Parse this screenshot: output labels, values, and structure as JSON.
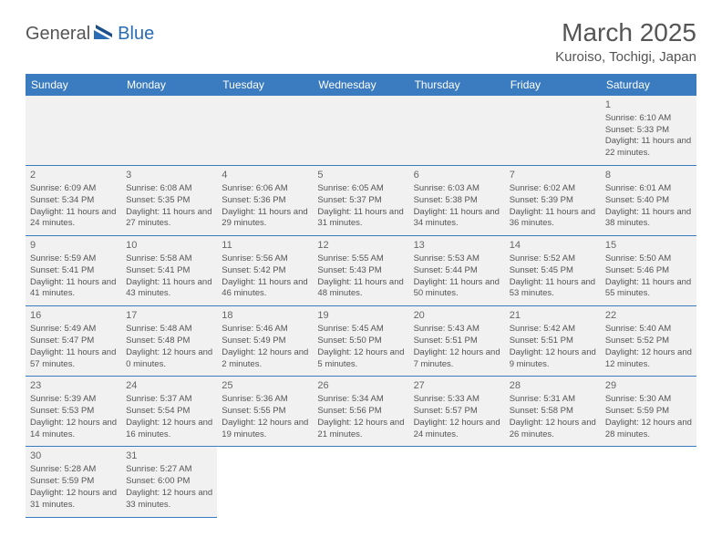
{
  "logo": {
    "dark": "General",
    "blue": "Blue"
  },
  "title": "March 2025",
  "location": "Kuroiso, Tochigi, Japan",
  "weekday_headers": [
    "Sunday",
    "Monday",
    "Tuesday",
    "Wednesday",
    "Thursday",
    "Friday",
    "Saturday"
  ],
  "colors": {
    "header_bg": "#3b7bbf",
    "header_text": "#ffffff",
    "cell_bg": "#f1f1f1",
    "border": "#3b7bbf",
    "body_text": "#555555"
  },
  "weeks": [
    [
      null,
      null,
      null,
      null,
      null,
      null,
      {
        "n": "1",
        "sunrise": "Sunrise: 6:10 AM",
        "sunset": "Sunset: 5:33 PM",
        "daylight": "Daylight: 11 hours and 22 minutes."
      }
    ],
    [
      {
        "n": "2",
        "sunrise": "Sunrise: 6:09 AM",
        "sunset": "Sunset: 5:34 PM",
        "daylight": "Daylight: 11 hours and 24 minutes."
      },
      {
        "n": "3",
        "sunrise": "Sunrise: 6:08 AM",
        "sunset": "Sunset: 5:35 PM",
        "daylight": "Daylight: 11 hours and 27 minutes."
      },
      {
        "n": "4",
        "sunrise": "Sunrise: 6:06 AM",
        "sunset": "Sunset: 5:36 PM",
        "daylight": "Daylight: 11 hours and 29 minutes."
      },
      {
        "n": "5",
        "sunrise": "Sunrise: 6:05 AM",
        "sunset": "Sunset: 5:37 PM",
        "daylight": "Daylight: 11 hours and 31 minutes."
      },
      {
        "n": "6",
        "sunrise": "Sunrise: 6:03 AM",
        "sunset": "Sunset: 5:38 PM",
        "daylight": "Daylight: 11 hours and 34 minutes."
      },
      {
        "n": "7",
        "sunrise": "Sunrise: 6:02 AM",
        "sunset": "Sunset: 5:39 PM",
        "daylight": "Daylight: 11 hours and 36 minutes."
      },
      {
        "n": "8",
        "sunrise": "Sunrise: 6:01 AM",
        "sunset": "Sunset: 5:40 PM",
        "daylight": "Daylight: 11 hours and 38 minutes."
      }
    ],
    [
      {
        "n": "9",
        "sunrise": "Sunrise: 5:59 AM",
        "sunset": "Sunset: 5:41 PM",
        "daylight": "Daylight: 11 hours and 41 minutes."
      },
      {
        "n": "10",
        "sunrise": "Sunrise: 5:58 AM",
        "sunset": "Sunset: 5:41 PM",
        "daylight": "Daylight: 11 hours and 43 minutes."
      },
      {
        "n": "11",
        "sunrise": "Sunrise: 5:56 AM",
        "sunset": "Sunset: 5:42 PM",
        "daylight": "Daylight: 11 hours and 46 minutes."
      },
      {
        "n": "12",
        "sunrise": "Sunrise: 5:55 AM",
        "sunset": "Sunset: 5:43 PM",
        "daylight": "Daylight: 11 hours and 48 minutes."
      },
      {
        "n": "13",
        "sunrise": "Sunrise: 5:53 AM",
        "sunset": "Sunset: 5:44 PM",
        "daylight": "Daylight: 11 hours and 50 minutes."
      },
      {
        "n": "14",
        "sunrise": "Sunrise: 5:52 AM",
        "sunset": "Sunset: 5:45 PM",
        "daylight": "Daylight: 11 hours and 53 minutes."
      },
      {
        "n": "15",
        "sunrise": "Sunrise: 5:50 AM",
        "sunset": "Sunset: 5:46 PM",
        "daylight": "Daylight: 11 hours and 55 minutes."
      }
    ],
    [
      {
        "n": "16",
        "sunrise": "Sunrise: 5:49 AM",
        "sunset": "Sunset: 5:47 PM",
        "daylight": "Daylight: 11 hours and 57 minutes."
      },
      {
        "n": "17",
        "sunrise": "Sunrise: 5:48 AM",
        "sunset": "Sunset: 5:48 PM",
        "daylight": "Daylight: 12 hours and 0 minutes."
      },
      {
        "n": "18",
        "sunrise": "Sunrise: 5:46 AM",
        "sunset": "Sunset: 5:49 PM",
        "daylight": "Daylight: 12 hours and 2 minutes."
      },
      {
        "n": "19",
        "sunrise": "Sunrise: 5:45 AM",
        "sunset": "Sunset: 5:50 PM",
        "daylight": "Daylight: 12 hours and 5 minutes."
      },
      {
        "n": "20",
        "sunrise": "Sunrise: 5:43 AM",
        "sunset": "Sunset: 5:51 PM",
        "daylight": "Daylight: 12 hours and 7 minutes."
      },
      {
        "n": "21",
        "sunrise": "Sunrise: 5:42 AM",
        "sunset": "Sunset: 5:51 PM",
        "daylight": "Daylight: 12 hours and 9 minutes."
      },
      {
        "n": "22",
        "sunrise": "Sunrise: 5:40 AM",
        "sunset": "Sunset: 5:52 PM",
        "daylight": "Daylight: 12 hours and 12 minutes."
      }
    ],
    [
      {
        "n": "23",
        "sunrise": "Sunrise: 5:39 AM",
        "sunset": "Sunset: 5:53 PM",
        "daylight": "Daylight: 12 hours and 14 minutes."
      },
      {
        "n": "24",
        "sunrise": "Sunrise: 5:37 AM",
        "sunset": "Sunset: 5:54 PM",
        "daylight": "Daylight: 12 hours and 16 minutes."
      },
      {
        "n": "25",
        "sunrise": "Sunrise: 5:36 AM",
        "sunset": "Sunset: 5:55 PM",
        "daylight": "Daylight: 12 hours and 19 minutes."
      },
      {
        "n": "26",
        "sunrise": "Sunrise: 5:34 AM",
        "sunset": "Sunset: 5:56 PM",
        "daylight": "Daylight: 12 hours and 21 minutes."
      },
      {
        "n": "27",
        "sunrise": "Sunrise: 5:33 AM",
        "sunset": "Sunset: 5:57 PM",
        "daylight": "Daylight: 12 hours and 24 minutes."
      },
      {
        "n": "28",
        "sunrise": "Sunrise: 5:31 AM",
        "sunset": "Sunset: 5:58 PM",
        "daylight": "Daylight: 12 hours and 26 minutes."
      },
      {
        "n": "29",
        "sunrise": "Sunrise: 5:30 AM",
        "sunset": "Sunset: 5:59 PM",
        "daylight": "Daylight: 12 hours and 28 minutes."
      }
    ],
    [
      {
        "n": "30",
        "sunrise": "Sunrise: 5:28 AM",
        "sunset": "Sunset: 5:59 PM",
        "daylight": "Daylight: 12 hours and 31 minutes."
      },
      {
        "n": "31",
        "sunrise": "Sunrise: 5:27 AM",
        "sunset": "Sunset: 6:00 PM",
        "daylight": "Daylight: 12 hours and 33 minutes."
      },
      null,
      null,
      null,
      null,
      null
    ]
  ]
}
